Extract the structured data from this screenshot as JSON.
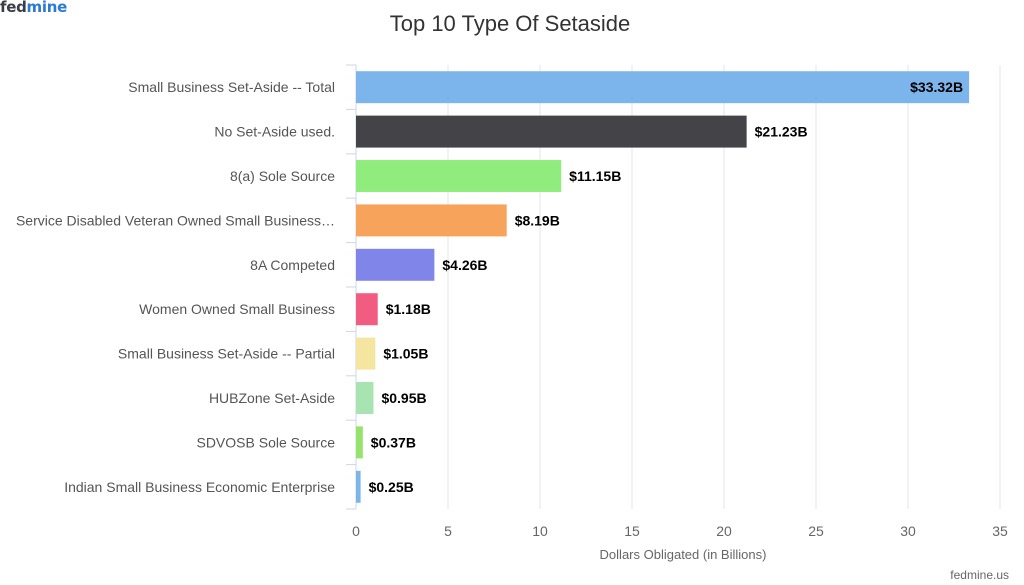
{
  "brand": {
    "part1": "fed",
    "part2": "mine"
  },
  "credit": "fedmine.us",
  "chart_data": {
    "type": "bar",
    "orientation": "horizontal",
    "title": "Top 10 Type Of Setaside",
    "xlabel": "Dollars Obligated (in Billions)",
    "ylabel": "",
    "xlim": [
      0,
      35
    ],
    "xticks": [
      0,
      5,
      10,
      15,
      20,
      25,
      30,
      35
    ],
    "grid": true,
    "categories": [
      "Small Business Set-Aside -- Total",
      "No Set-Aside used.",
      "8(a) Sole Source",
      "Service Disabled Veteran Owned Small Business…",
      "8A Competed",
      "Women Owned Small Business",
      "Small Business Set-Aside -- Partial",
      "HUBZone Set-Aside",
      "SDVOSB Sole Source",
      "Indian Small Business Economic Enterprise"
    ],
    "values": [
      33.32,
      21.23,
      11.15,
      8.19,
      4.26,
      1.18,
      1.05,
      0.95,
      0.37,
      0.25
    ],
    "data_labels": [
      "$33.32B",
      "$21.23B",
      "$11.15B",
      "$8.19B",
      "$4.26B",
      "$1.18B",
      "$1.05B",
      "$0.95B",
      "$0.37B",
      "$0.25B"
    ],
    "colors": [
      "#7cb5ec",
      "#434348",
      "#90ed7d",
      "#f7a35c",
      "#8085e9",
      "#f15c80",
      "#f4e5a1",
      "#a8e3b2",
      "#95e36a",
      "#7cb5ec"
    ]
  }
}
